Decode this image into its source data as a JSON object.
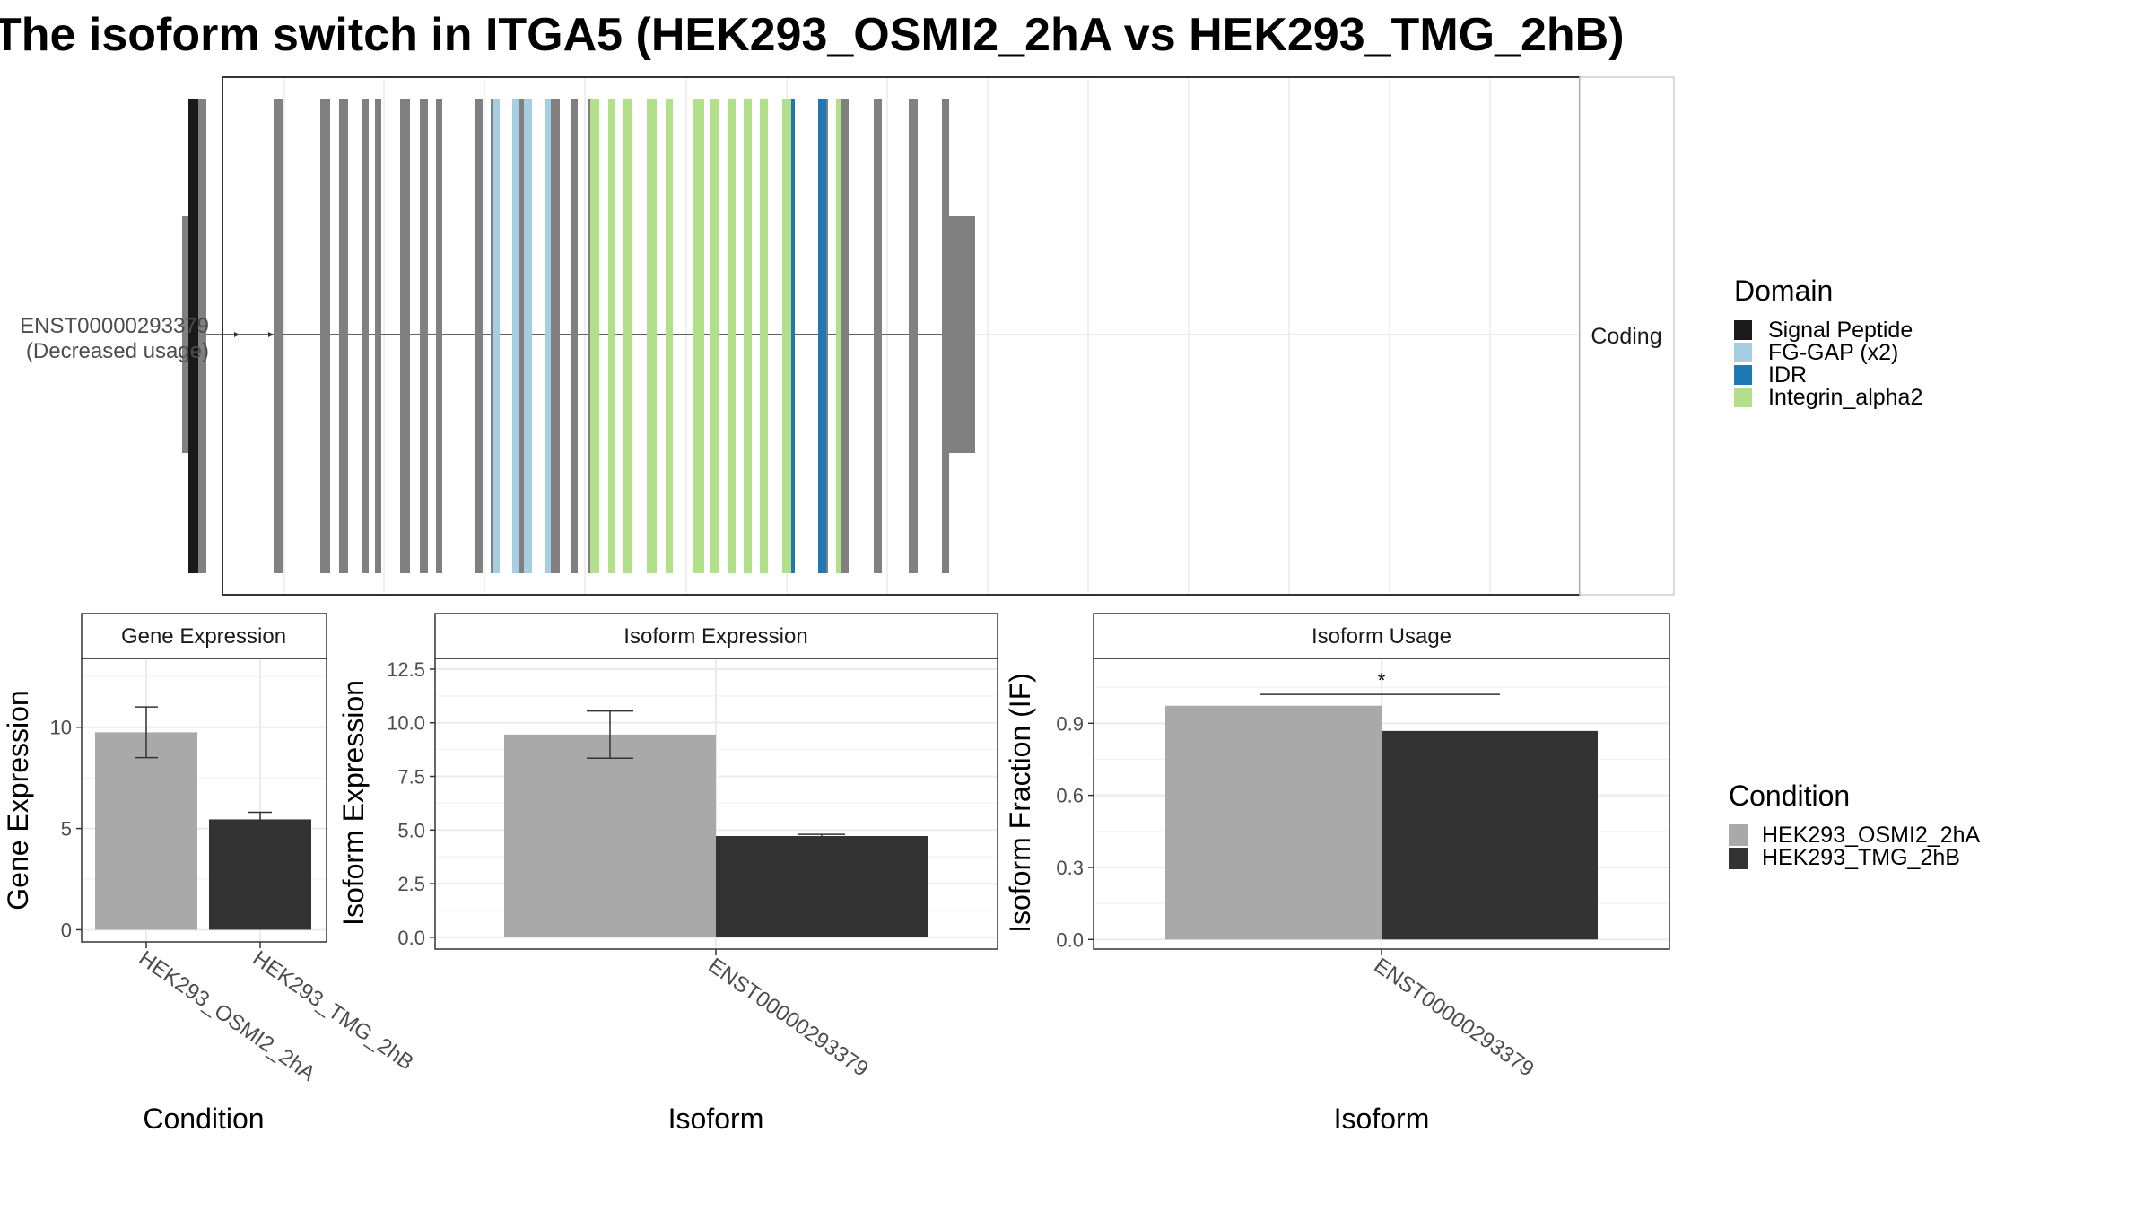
{
  "title": "The isoform switch in ITGA5 (HEK293_OSMI2_2hA vs HEK293_TMG_2hB)",
  "colors": {
    "condition_a": "#a9a9a9",
    "condition_b": "#333333",
    "exon": "#808080",
    "signal_peptide": "#1a1a1a",
    "fg_gap": "#a6cee3",
    "idr": "#1f78b4",
    "integrin_alpha2": "#b2df8a"
  },
  "chart_data": [
    {
      "type": "gene-structure",
      "isoform": "ENST00000293379",
      "isoform_note": "(Decreased usage)",
      "facet_label": "Coding",
      "legend_title": "Domain",
      "legend": [
        {
          "label": "Signal Peptide",
          "color_key": "signal_peptide"
        },
        {
          "label": "FG-GAP (x2)",
          "color_key": "fg_gap"
        },
        {
          "label": "IDR",
          "color_key": "idr"
        },
        {
          "label": "Integrin_alpha2",
          "color_key": "integrin_alpha2"
        }
      ],
      "utr_blocks": [
        {
          "start": 203,
          "end": 212
        },
        {
          "start": 1057,
          "end": 1087
        }
      ],
      "exons": [
        {
          "start": 210,
          "end": 221,
          "domain": "signal_peptide"
        },
        {
          "start": 221,
          "end": 230,
          "domain": "none"
        },
        {
          "start": 305,
          "end": 316,
          "domain": "none"
        },
        {
          "start": 357,
          "end": 368,
          "domain": "none"
        },
        {
          "start": 378,
          "end": 388,
          "domain": "none"
        },
        {
          "start": 403,
          "end": 411,
          "domain": "none"
        },
        {
          "start": 418,
          "end": 425,
          "domain": "none"
        },
        {
          "start": 446,
          "end": 457,
          "domain": "none"
        },
        {
          "start": 468,
          "end": 477,
          "domain": "none"
        },
        {
          "start": 486,
          "end": 493,
          "domain": "none"
        },
        {
          "start": 530,
          "end": 538,
          "domain": "none"
        },
        {
          "start": 547,
          "end": 550,
          "domain": "none"
        },
        {
          "start": 550,
          "end": 557,
          "domain": "fg_gap"
        },
        {
          "start": 571,
          "end": 579,
          "domain": "fg_gap"
        },
        {
          "start": 579,
          "end": 584,
          "domain": "none"
        },
        {
          "start": 584,
          "end": 593,
          "domain": "fg_gap"
        },
        {
          "start": 607,
          "end": 614,
          "domain": "fg_gap"
        },
        {
          "start": 614,
          "end": 624,
          "domain": "none"
        },
        {
          "start": 637,
          "end": 644,
          "domain": "none"
        },
        {
          "start": 655,
          "end": 658,
          "domain": "none"
        },
        {
          "start": 658,
          "end": 668,
          "domain": "integrin_alpha2"
        },
        {
          "start": 678,
          "end": 686,
          "domain": "integrin_alpha2"
        },
        {
          "start": 695,
          "end": 705,
          "domain": "integrin_alpha2"
        },
        {
          "start": 721,
          "end": 732,
          "domain": "integrin_alpha2"
        },
        {
          "start": 742,
          "end": 750,
          "domain": "integrin_alpha2"
        },
        {
          "start": 773,
          "end": 785,
          "domain": "integrin_alpha2"
        },
        {
          "start": 792,
          "end": 801,
          "domain": "integrin_alpha2"
        },
        {
          "start": 811,
          "end": 820,
          "domain": "integrin_alpha2"
        },
        {
          "start": 829,
          "end": 838,
          "domain": "integrin_alpha2"
        },
        {
          "start": 847,
          "end": 856,
          "domain": "integrin_alpha2"
        },
        {
          "start": 872,
          "end": 882,
          "domain": "integrin_alpha2"
        },
        {
          "start": 882,
          "end": 886,
          "domain": "idr"
        },
        {
          "start": 912,
          "end": 921,
          "domain": "idr"
        },
        {
          "start": 921,
          "end": 923,
          "domain": "none"
        },
        {
          "start": 932,
          "end": 937,
          "domain": "integrin_alpha2"
        },
        {
          "start": 937,
          "end": 946,
          "domain": "none"
        },
        {
          "start": 974,
          "end": 983,
          "domain": "none"
        },
        {
          "start": 1013,
          "end": 1023,
          "domain": "none"
        },
        {
          "start": 1050,
          "end": 1058,
          "domain": "none"
        }
      ],
      "arrows": [
        265,
        303
      ]
    },
    {
      "type": "bar",
      "strip": "Gene Expression",
      "xlabel": "Condition",
      "ylabel": "Gene Expression",
      "ylim": [
        -0.6,
        13.4
      ],
      "yticks": [
        0,
        5,
        10
      ],
      "categories": [
        "HEK293_OSMI2_2hA",
        "HEK293_TMG_2hB"
      ],
      "values": [
        9.75,
        5.45
      ],
      "errors": [
        [
          8.5,
          11.0
        ],
        [
          5.15,
          5.8
        ]
      ],
      "bar_colors": [
        "condition_a",
        "condition_b"
      ]
    },
    {
      "type": "bar",
      "strip": "Isoform Expression",
      "xlabel": "Isoform",
      "ylabel": "Isoform Expression",
      "ylim": [
        -0.55,
        13.0
      ],
      "yticks": [
        0.0,
        2.5,
        5.0,
        7.5,
        10.0,
        12.5
      ],
      "ytick_labels": [
        "0.0",
        "2.5",
        "5.0",
        "7.5",
        "10.0",
        "12.5"
      ],
      "categories": [
        "ENST00000293379"
      ],
      "series": [
        {
          "name": "HEK293_OSMI2_2hA",
          "values": [
            9.45
          ],
          "error": [
            8.35,
            10.55
          ]
        },
        {
          "name": "HEK293_TMG_2hB",
          "values": [
            4.72
          ],
          "error": [
            4.65,
            4.8
          ]
        }
      ]
    },
    {
      "type": "bar",
      "strip": "Isoform Usage",
      "xlabel": "Isoform",
      "ylabel": "Isoform Fraction (IF)",
      "ylim": [
        -0.04,
        1.17
      ],
      "yticks": [
        0.0,
        0.3,
        0.6,
        0.9
      ],
      "ytick_labels": [
        "0.0",
        "0.3",
        "0.6",
        "0.9"
      ],
      "categories": [
        "ENST00000293379"
      ],
      "series": [
        {
          "name": "HEK293_OSMI2_2hA",
          "values": [
            0.973
          ]
        },
        {
          "name": "HEK293_TMG_2hB",
          "values": [
            0.868
          ]
        }
      ],
      "significance": {
        "label": "*",
        "y": 1.02
      }
    }
  ],
  "condition_legend": {
    "title": "Condition",
    "items": [
      {
        "label": "HEK293_OSMI2_2hA",
        "color_key": "condition_a"
      },
      {
        "label": "HEK293_TMG_2hB",
        "color_key": "condition_b"
      }
    ]
  }
}
